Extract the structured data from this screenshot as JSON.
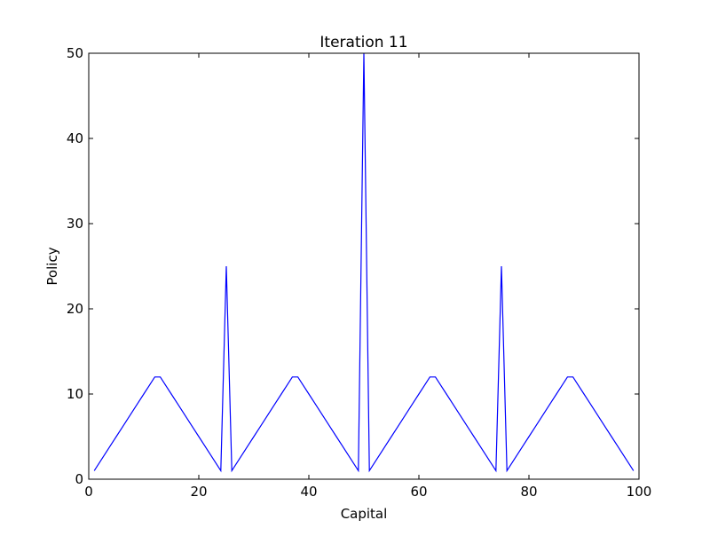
{
  "chart_data": {
    "type": "line",
    "title": "Iteration 11",
    "xlabel": "Capital",
    "ylabel": "Policy",
    "xlim": [
      0,
      100
    ],
    "ylim": [
      0,
      50
    ],
    "xticks": [
      0,
      20,
      40,
      60,
      80,
      100
    ],
    "yticks": [
      0,
      10,
      20,
      30,
      40,
      50
    ],
    "grid": false,
    "line_color": "#0000ff",
    "series": [
      {
        "x": [
          1,
          2,
          3,
          4,
          5,
          6,
          7,
          8,
          9,
          10,
          11,
          12,
          13,
          14,
          15,
          16,
          17,
          18,
          19,
          20,
          21,
          22,
          23,
          24,
          25,
          26,
          27,
          28,
          29,
          30,
          31,
          32,
          33,
          34,
          35,
          36,
          37,
          38,
          39,
          40,
          41,
          42,
          43,
          44,
          45,
          46,
          47,
          48,
          49,
          50,
          51,
          52,
          53,
          54,
          55,
          56,
          57,
          58,
          59,
          60,
          61,
          62,
          63,
          64,
          65,
          66,
          67,
          68,
          69,
          70,
          71,
          72,
          73,
          74,
          75,
          76,
          77,
          78,
          79,
          80,
          81,
          82,
          83,
          84,
          85,
          86,
          87,
          88,
          89,
          90,
          91,
          92,
          93,
          94,
          95,
          96,
          97,
          98,
          99
        ],
        "y": [
          1,
          2,
          3,
          4,
          5,
          6,
          7,
          8,
          9,
          10,
          11,
          12,
          12,
          11,
          10,
          9,
          8,
          7,
          6,
          5,
          4,
          3,
          2,
          1,
          25,
          1,
          2,
          3,
          4,
          5,
          6,
          7,
          8,
          9,
          10,
          11,
          12,
          12,
          11,
          10,
          9,
          8,
          7,
          6,
          5,
          4,
          3,
          2,
          1,
          50,
          1,
          2,
          3,
          4,
          5,
          6,
          7,
          8,
          9,
          10,
          11,
          12,
          12,
          11,
          10,
          9,
          8,
          7,
          6,
          5,
          4,
          3,
          2,
          1,
          25,
          1,
          2,
          3,
          4,
          5,
          6,
          7,
          8,
          9,
          10,
          11,
          12,
          12,
          11,
          10,
          9,
          8,
          7,
          6,
          5,
          4,
          3,
          2,
          1
        ]
      }
    ]
  }
}
